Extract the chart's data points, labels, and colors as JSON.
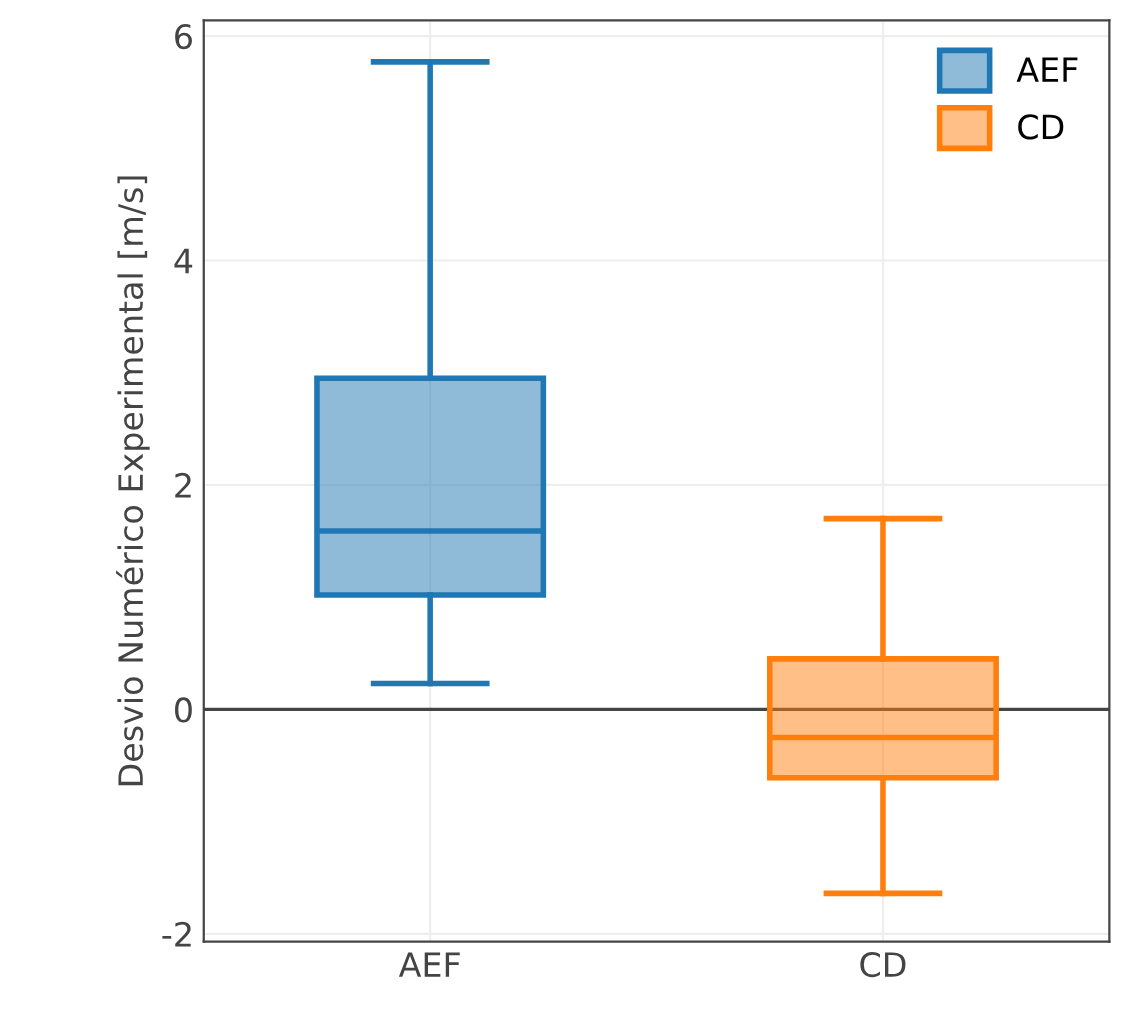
{
  "chart_data": {
    "type": "box",
    "ylabel": "Desvio Numérico Experimental [m/s]",
    "categories": [
      "AEF",
      "CD"
    ],
    "series": [
      {
        "name": "AEF",
        "color": "#1f77b4",
        "boxes": [
          {
            "low": 0.23,
            "q1": 1.02,
            "median": 1.59,
            "q3": 2.95,
            "high": 5.77
          },
          null
        ]
      },
      {
        "name": "CD",
        "color": "#ff7f0e",
        "boxes": [
          null,
          {
            "low": -1.64,
            "q1": -0.61,
            "median": -0.25,
            "q3": 0.45,
            "high": 1.7
          }
        ]
      }
    ],
    "ylim": [
      -2.07,
      6.14
    ],
    "yticks": [
      -2,
      0,
      2,
      4,
      6
    ],
    "ref_lines": [
      {
        "axis": "y",
        "value": 0,
        "color": "#444444"
      }
    ],
    "grid": true,
    "legend": "top right"
  }
}
